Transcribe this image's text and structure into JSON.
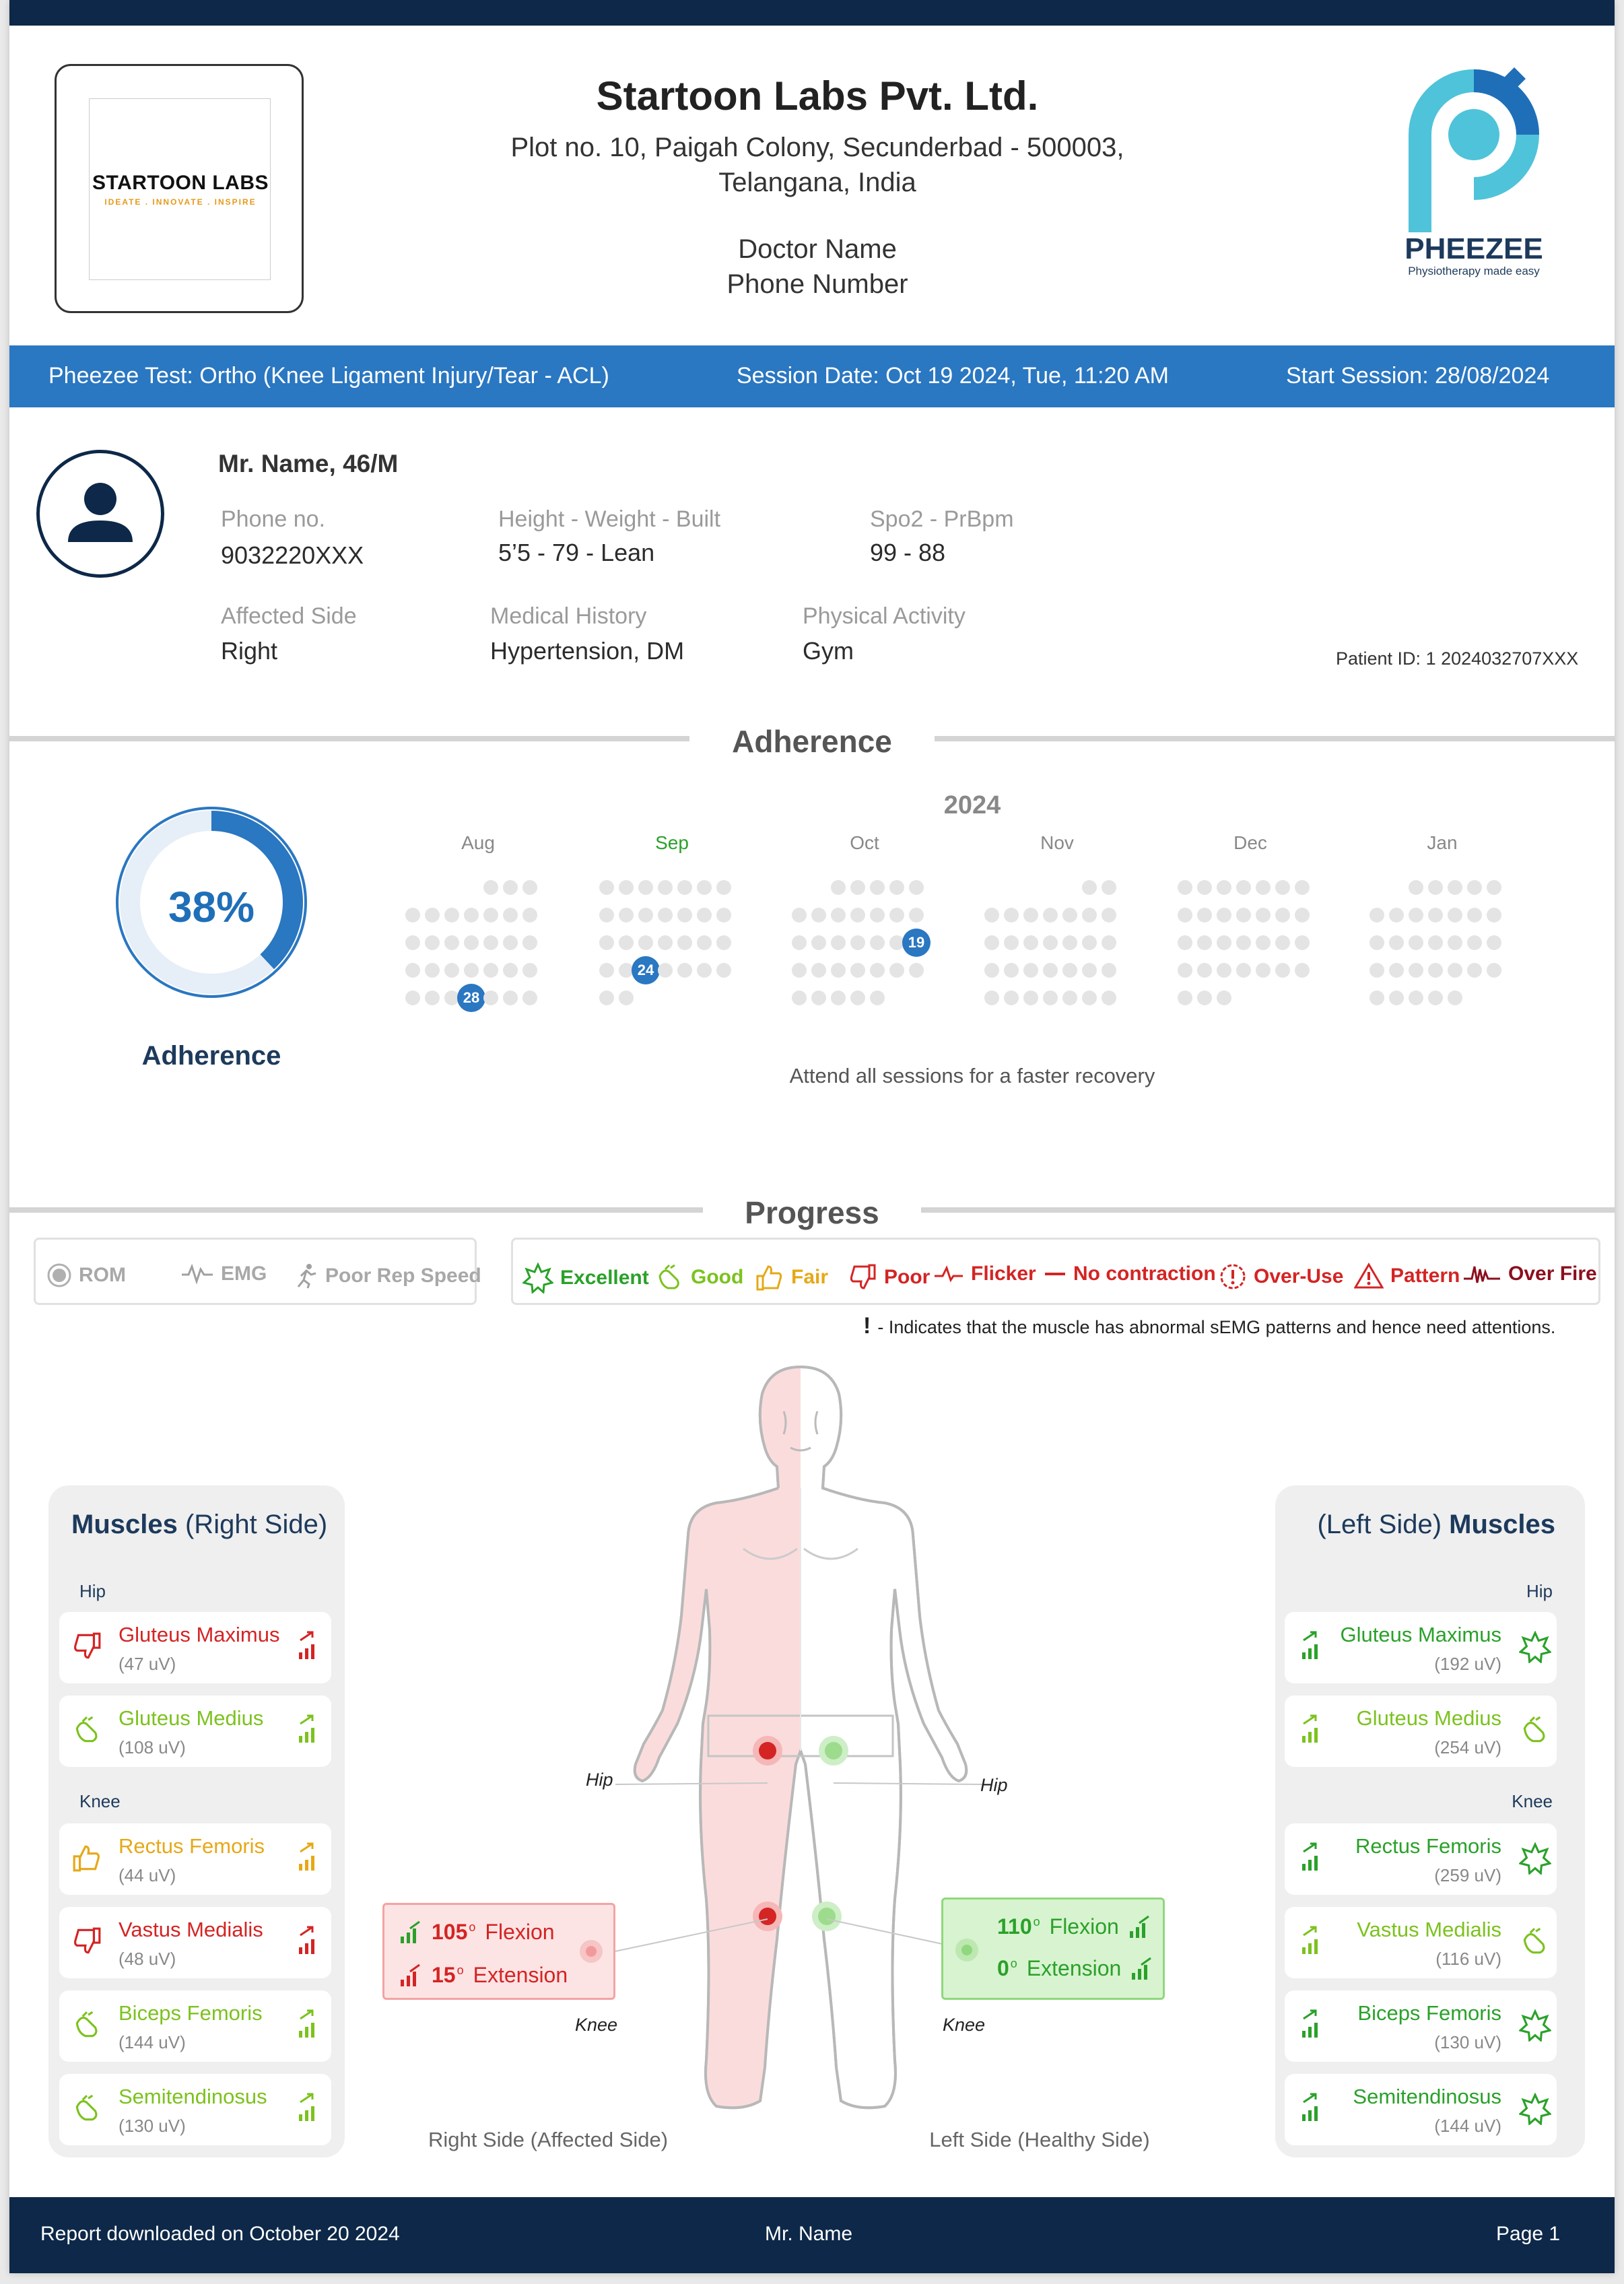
{
  "header": {
    "logo_text": "STARTOON LABS",
    "logo_tagline": "IDEATE . INNOVATE . INSPIRE",
    "company": "Startoon Labs Pvt. Ltd.",
    "address1": "Plot no. 10, Paigah Colony, Secunderbad - 500003,",
    "address2": "Telangana, India",
    "doctor": "Doctor Name",
    "phone": "Phone Number",
    "brand": "PHEEZEE",
    "brand_tagline": "Physiotherapy made easy"
  },
  "session_bar": {
    "test": "Pheezee Test: Ortho (Knee Ligament Injury/Tear - ACL)",
    "date": "Session Date: Oct 19 2024, Tue, 11:20 AM",
    "start": "Start Session:  28/08/2024"
  },
  "patient": {
    "name": "Mr. Name, 46/M",
    "phone_label": "Phone no.",
    "phone": "9032220XXX",
    "hwb_label": "Height - Weight - Built",
    "hwb": "5’5 - 79 - Lean",
    "spo2_label": "Spo2 - PrBpm",
    "spo2": "99 - 88",
    "side_label": "Affected Side",
    "side": "Right",
    "history_label": "Medical History",
    "history": "Hypertension, DM",
    "activity_label": "Physical Activity",
    "activity": "Gym",
    "id": "Patient ID:  1 2024032707XXX"
  },
  "adherence": {
    "title": "Adherence",
    "percent": "38%",
    "percent_value": 38,
    "label": "Adherence",
    "year": "2024",
    "months": [
      {
        "name": "Aug",
        "selected_day": "28",
        "highlight": false
      },
      {
        "name": "Sep",
        "selected_day": "24",
        "highlight": true
      },
      {
        "name": "Oct",
        "selected_day": "19",
        "highlight": false
      },
      {
        "name": "Nov",
        "selected_day": "",
        "highlight": false
      },
      {
        "name": "Dec",
        "selected_day": "",
        "highlight": false
      },
      {
        "name": "Jan",
        "selected_day": "",
        "highlight": false
      }
    ],
    "note": "Attend all sessions for a faster recovery"
  },
  "progress": {
    "title": "Progress",
    "modes": [
      "ROM",
      "EMG",
      "Poor Rep Speed"
    ],
    "ratings": [
      {
        "label": "Excellent",
        "color": "#2aa12a"
      },
      {
        "label": "Good",
        "color": "#7cc21e"
      },
      {
        "label": "Fair",
        "color": "#e6a817"
      },
      {
        "label": "Poor",
        "color": "#d42424"
      },
      {
        "label": "Flicker",
        "color": "#d42424"
      },
      {
        "label": "No contraction",
        "color": "#d42424"
      },
      {
        "label": "Over-Use",
        "color": "#d42424"
      },
      {
        "label": "Pattern",
        "color": "#d42424"
      },
      {
        "label": "Over Fire",
        "color": "#8b0f1e"
      }
    ],
    "note_mark": "!",
    "note": "- Indicates that the muscle has abnormal sEMG patterns and hence need attentions."
  },
  "right_panel": {
    "title_bold": "Muscles",
    "title_rest": "(Right Side)",
    "groups": [
      "Hip",
      "Knee"
    ],
    "muscles": [
      {
        "name": "Gluteus Maximus",
        "uv": "(47 uV)",
        "color": "#d42424",
        "rating": "poor"
      },
      {
        "name": "Gluteus Medius",
        "uv": "(108 uV)",
        "color": "#7cc21e",
        "rating": "good"
      },
      {
        "name": "Rectus Femoris",
        "uv": "(44 uV)",
        "color": "#e6a817",
        "rating": "fair"
      },
      {
        "name": "Vastus Medialis",
        "uv": "(48 uV)",
        "color": "#d42424",
        "rating": "poor"
      },
      {
        "name": "Biceps Femoris",
        "uv": "(144 uV)",
        "color": "#7cc21e",
        "rating": "good"
      },
      {
        "name": "Semitendinosus",
        "uv": "(130 uV)",
        "color": "#7cc21e",
        "rating": "good"
      }
    ]
  },
  "left_panel": {
    "title_rest": "(Left Side)",
    "title_bold": "Muscles",
    "groups": [
      "Hip",
      "Knee"
    ],
    "muscles": [
      {
        "name": "Gluteus Maximus",
        "uv": "(192 uV)",
        "color": "#2aa12a",
        "rating": "excellent"
      },
      {
        "name": "Gluteus Medius",
        "uv": "(254 uV)",
        "color": "#7cc21e",
        "rating": "good"
      },
      {
        "name": "Rectus Femoris",
        "uv": "(259 uV)",
        "color": "#2aa12a",
        "rating": "excellent"
      },
      {
        "name": "Vastus Medialis",
        "uv": "(116 uV)",
        "color": "#7cc21e",
        "rating": "good"
      },
      {
        "name": "Biceps Femoris",
        "uv": "(130 uV)",
        "color": "#2aa12a",
        "rating": "excellent"
      },
      {
        "name": "Semitendinosus",
        "uv": "(144 uV)",
        "color": "#2aa12a",
        "rating": "excellent"
      }
    ]
  },
  "body": {
    "hip_label": "Hip",
    "knee_label": "Knee",
    "right_caption": "Right Side (Affected Side)",
    "left_caption": "Left Side (Healthy Side)"
  },
  "rom_right": {
    "flexion_value": "105",
    "flexion_label": "Flexion",
    "extension_value": "15",
    "extension_label": "Extension",
    "color": "#d42424"
  },
  "rom_left": {
    "flexion_value": "110",
    "flexion_label": "Flexion",
    "extension_value": "0",
    "extension_label": "Extension",
    "color": "#2aa12a"
  },
  "footer": {
    "left": "Report downloaded on October 20 2024",
    "center": "Mr. Name",
    "right": "Page 1"
  }
}
